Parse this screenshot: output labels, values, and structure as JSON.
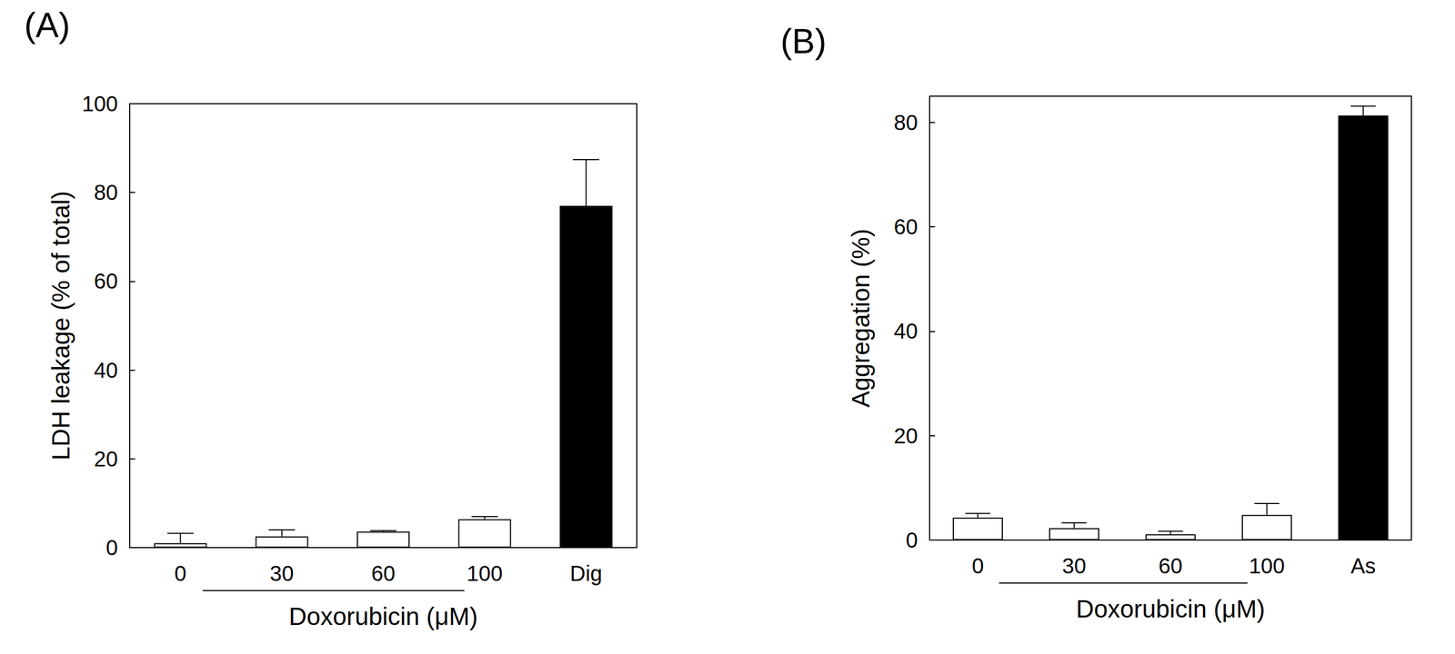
{
  "chart_data": [
    {
      "type": "bar",
      "title": "(A)",
      "x_label": "Doxorubicin (μM)",
      "y_label": "LDH leakage (% of total)",
      "categories": [
        "0",
        "30",
        "60",
        "100",
        "Dig"
      ],
      "values": [
        1.0,
        2.5,
        3.6,
        6.4,
        77.0
      ],
      "errors": [
        2.2,
        1.5,
        0.2,
        0.6,
        10.4
      ],
      "colors": [
        "#ffffff",
        "#ffffff",
        "#ffffff",
        "#ffffff",
        "#000000"
      ],
      "ylim": [
        0,
        100
      ],
      "yticks": [
        0,
        20,
        40,
        60,
        80,
        100
      ]
    },
    {
      "type": "bar",
      "title": "(B)",
      "x_label": "Doxorubicin (μM)",
      "y_label": "Aggregation (%)",
      "categories": [
        "0",
        "30",
        "60",
        "100",
        "As"
      ],
      "values": [
        4.3,
        2.3,
        1.1,
        4.8,
        81.3
      ],
      "errors": [
        0.8,
        1.0,
        0.6,
        2.2,
        1.8
      ],
      "colors": [
        "#ffffff",
        "#ffffff",
        "#ffffff",
        "#ffffff",
        "#000000"
      ],
      "ylim": [
        0,
        85
      ],
      "yticks": [
        0,
        20,
        40,
        60,
        80
      ]
    }
  ]
}
